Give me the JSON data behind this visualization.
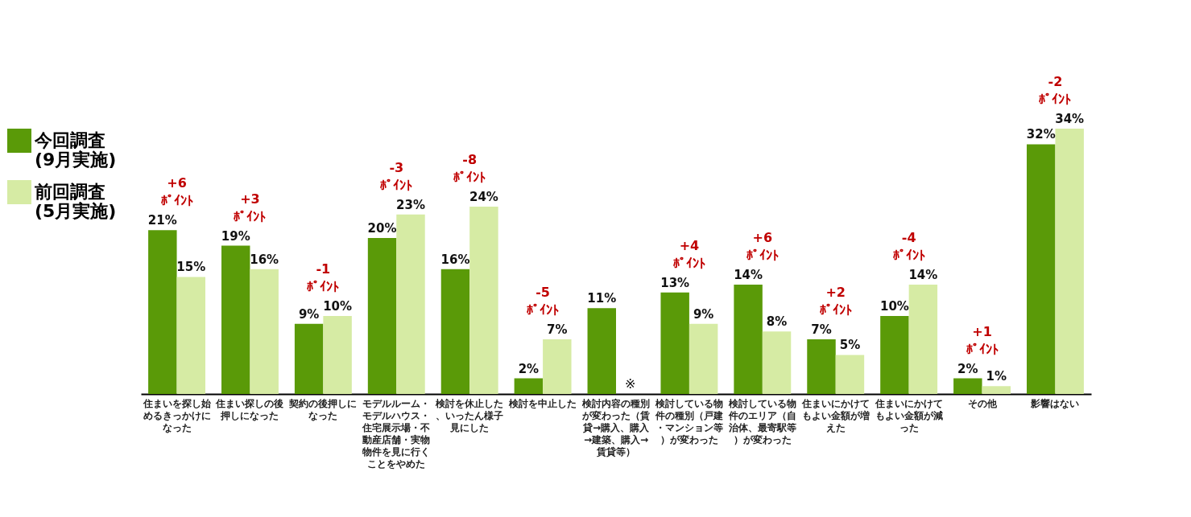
{
  "chart_data": {
    "type": "bar",
    "categories": [
      "住まいを探し始めるきっかけになった",
      "住まい探しの後押しになった",
      "契約の後押しになった",
      "モデルルーム・モデルハウス・住宅展示場・不動産店舗・実物物件を見に行くことをやめた",
      "検討を休止した、いったん様子見にした",
      "検討を中止した",
      "検討内容の種別が変わった（賃貸→購入、購入→建築、購入→賃貸等）",
      "検討している物件の種別（戸建・マンション等）が変わった",
      "検討している物件のエリア（自治体、最寄駅等）が変わった",
      "住まいにかけてもよい金額が増えた",
      "住まいにかけてもよい金額が減った",
      "その他",
      "影響はない"
    ],
    "series": [
      {
        "name": "今回調査\n(9月実施)",
        "color": "#5a9a08",
        "values": [
          21,
          19,
          9,
          20,
          16,
          2,
          11,
          13,
          14,
          7,
          10,
          2,
          32
        ],
        "value_labels": [
          "21%",
          "19%",
          "9%",
          "20%",
          "16%",
          "2%",
          "11%",
          "13%",
          "14%",
          "7%",
          "10%",
          "2%",
          "32%"
        ]
      },
      {
        "name": "前回調査\n(5月実施)",
        "color": "#d6eba4",
        "values": [
          15,
          16,
          10,
          23,
          24,
          7,
          null,
          9,
          8,
          5,
          14,
          1,
          34
        ],
        "value_labels": [
          "15%",
          "16%",
          "10%",
          "23%",
          "24%",
          "7%",
          null,
          "9%",
          "8%",
          "5%",
          "14%",
          "1%",
          "34%"
        ]
      }
    ],
    "annotations": [
      {
        "text": "+6\nﾎﾟｲﾝﾄ",
        "x": "住まいを探し始めるきっかけになった",
        "y": 21
      },
      {
        "text": "+3\nﾎﾟｲﾝﾄ",
        "x": "住まい探しの後押しになった",
        "y": 19
      },
      {
        "text": "-1\nﾎﾟｲﾝﾄ",
        "x": "契約の後押しになった",
        "y": 10
      },
      {
        "text": "-3\nﾎﾟｲﾝﾄ",
        "x": "モデルルーム・モデルハウス・住宅展示場・不動産店舗・実物物件を見に行くことをやめた",
        "y": 23
      },
      {
        "text": "-8\nﾎﾟｲﾝﾄ",
        "x": "検討を休止した、いったん様子見にした",
        "y": 24
      },
      {
        "text": "-5\nﾎﾟｲﾝﾄ",
        "x": "検討を中止した",
        "y": 7
      },
      {
        "text": "※",
        "x": "検討内容の種別が変わった（賃貸→購入、購入→建築、購入→賃貸等）",
        "y": 0
      },
      {
        "text": "+4\nﾎﾟｲﾝﾄ",
        "x": "検討している物件の種別（戸建・マンション等）が変わった",
        "y": 13
      },
      {
        "text": "+6\nﾎﾟｲﾝﾄ",
        "x": "検討している物件のエリア（自治体、最寄駅等）が変わった",
        "y": 14
      },
      {
        "text": "+2\nﾎﾟｲﾝﾄ",
        "x": "住まいにかけてもよい金額が増えた",
        "y": 7
      },
      {
        "text": "-4\nﾎﾟｲﾝﾄ",
        "x": "住まいにかけてもよい金額が減った",
        "y": 14
      },
      {
        "text": "+1\nﾎﾟｲﾝﾄ",
        "x": "その他",
        "y": 2
      },
      {
        "text": "-2\nﾎﾟｲﾝﾄ",
        "x": "影響はない",
        "y": 34
      }
    ],
    "legend": "left"
  }
}
